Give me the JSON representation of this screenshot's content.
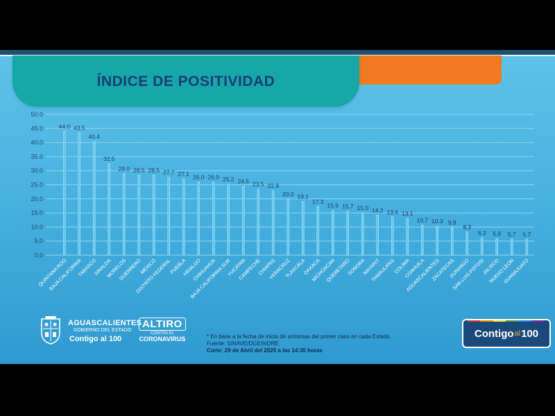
{
  "title": "ÍNDICE DE POSITIVIDAD",
  "chart_data": {
    "type": "bar",
    "title": "ÍNDICE DE POSITIVIDAD",
    "ylim": [
      0,
      50
    ],
    "yticks": [
      "0.0",
      "5.0",
      "10.0",
      "15.0",
      "20.0",
      "25.0",
      "30.0",
      "35.0",
      "40.0",
      "45.0",
      "50.0"
    ],
    "grid": true,
    "categories": [
      "QUINTANA ROO",
      "BAJA CALIFORNIA",
      "TABASCO",
      "SINALOA",
      "MORELOS",
      "GUERRERO",
      "MEXICO",
      "DISTRITO FEDERAL",
      "PUEBLA",
      "HIDALGO",
      "CHIHUAHUA",
      "BAJA CALIFORNIA SUR",
      "YUCATAN",
      "CAMPECHE",
      "CHIAPAS",
      "VERACRUZ",
      "TLAXCALA",
      "OAXACA",
      "MICHOACAN",
      "QUERETARO",
      "SONORA",
      "NAYARIT",
      "TAMAULIPAS",
      "COLIMA",
      "COAHUILA",
      "AGUASCALIENTES",
      "ZACATECAS",
      "DURANGO",
      "SAN LUIS POTOSI",
      "JALISCO",
      "NUEVO LEON",
      "GUANAJUATO"
    ],
    "values": [
      44.0,
      43.5,
      40.4,
      32.5,
      29.0,
      28.5,
      28.5,
      27.7,
      27.1,
      26.0,
      26.0,
      25.2,
      24.5,
      23.5,
      22.9,
      20.0,
      19.1,
      17.3,
      15.9,
      15.7,
      15.0,
      14.2,
      13.6,
      13.1,
      10.7,
      10.3,
      9.9,
      8.3,
      6.2,
      5.9,
      5.7,
      5.7
    ],
    "value_labels": [
      "44.0",
      "43.5",
      "40.4",
      "32.5",
      "29.0",
      "28.5",
      "28.5",
      "27.7",
      "27.1",
      "26.0",
      "26.0",
      "25.2",
      "24.5",
      "23.5",
      "22.9",
      "20.0",
      "19.1",
      "17.3",
      "15.9",
      "15.7",
      "15.0",
      "14.2",
      "13.6",
      "13.1",
      "10.7",
      "10.3",
      "9.9",
      "8.3",
      "6.2",
      "5.9",
      "5.7",
      "5.7"
    ],
    "colors": {
      "bar": "#66c8ec",
      "grid": "#8fd3f1",
      "axis_text": "#1f4b72"
    }
  },
  "footer": {
    "gov_line1": "AGUASCALIENTES",
    "gov_line2": "GOBIERNO DEL ESTADO",
    "gov_line3": "Contigo al 100",
    "altiro": "ALTIRO",
    "altiro_mid": "CONTRA EL",
    "altiro_sub": "CORONAVIRUS",
    "note1": "* En base a la fecha de inicio de síntomas del primer caso en cada Estado.",
    "note2": "Fuente: SINAVE/DGE/InDRE",
    "note3": "Corte: 29 de Abril del 2020 a las 14:30 horas",
    "brand_a": "Contigo",
    "brand_b": "al",
    "brand_c": "100"
  },
  "colors": {
    "banner": "#16a7a7",
    "orange": "#ef7a22",
    "title": "#1c3d7a",
    "background": "#49b2e0"
  }
}
